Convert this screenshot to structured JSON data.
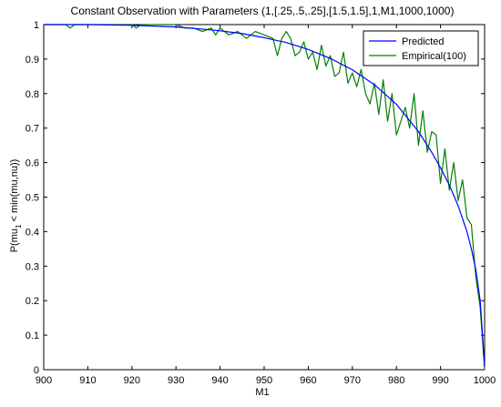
{
  "chart_data": {
    "type": "line",
    "title": "Constant Observation with Parameters (1,[.25,.5,.25],[1.5,1.5],1,M1,1000,1000)",
    "xlabel": "M1",
    "ylabel_parts": [
      "P(mu",
      "1",
      " < min(mu,nu))"
    ],
    "xlim": [
      900,
      1000
    ],
    "ylim": [
      0,
      1
    ],
    "x_ticks": [
      900,
      910,
      920,
      930,
      940,
      950,
      960,
      970,
      980,
      990,
      1000
    ],
    "y_ticks": [
      0,
      0.1,
      0.2,
      0.3,
      0.4,
      0.5,
      0.6,
      0.7,
      0.8,
      0.9,
      1
    ],
    "legend_position": "top-right",
    "grid": false,
    "series": [
      {
        "name": "Predicted",
        "color": "#0000ff",
        "x": [
          900,
          910,
          920,
          930,
          935,
          940,
          945,
          950,
          955,
          960,
          965,
          970,
          975,
          980,
          985,
          988,
          990,
          992,
          994,
          996,
          997,
          998,
          999,
          1000
        ],
        "y": [
          1.0,
          1.0,
          0.998,
          0.993,
          0.988,
          0.982,
          0.974,
          0.962,
          0.948,
          0.928,
          0.902,
          0.869,
          0.826,
          0.769,
          0.69,
          0.63,
          0.585,
          0.535,
          0.475,
          0.4,
          0.35,
          0.29,
          0.2,
          0.01
        ]
      },
      {
        "name": "Empirical(100)",
        "color": "#008000",
        "x": [
          900,
          905,
          906,
          907,
          908,
          920,
          921,
          922,
          923,
          930,
          932,
          934,
          936,
          938,
          939,
          940,
          942,
          944,
          946,
          948,
          950,
          952,
          953,
          954,
          955,
          956,
          957,
          958,
          959,
          960,
          961,
          962,
          963,
          964,
          965,
          966,
          967,
          968,
          969,
          970,
          971,
          972,
          973,
          974,
          975,
          976,
          977,
          978,
          979,
          980,
          981,
          982,
          983,
          984,
          985,
          986,
          987,
          988,
          989,
          990,
          991,
          992,
          993,
          994,
          995,
          996,
          997,
          998,
          999,
          1000
        ],
        "y": [
          1.0,
          1.0,
          0.99,
          1.0,
          1.0,
          1.0,
          0.99,
          1.0,
          1.0,
          1.0,
          0.99,
          0.99,
          0.98,
          0.99,
          0.97,
          0.99,
          0.97,
          0.98,
          0.96,
          0.98,
          0.97,
          0.96,
          0.91,
          0.96,
          0.98,
          0.96,
          0.91,
          0.92,
          0.95,
          0.9,
          0.92,
          0.87,
          0.94,
          0.88,
          0.91,
          0.85,
          0.86,
          0.92,
          0.83,
          0.86,
          0.82,
          0.87,
          0.8,
          0.77,
          0.83,
          0.74,
          0.84,
          0.72,
          0.8,
          0.68,
          0.72,
          0.76,
          0.7,
          0.8,
          0.65,
          0.75,
          0.63,
          0.69,
          0.68,
          0.54,
          0.64,
          0.52,
          0.6,
          0.49,
          0.55,
          0.44,
          0.42,
          0.27,
          0.18,
          0.0
        ]
      }
    ]
  }
}
